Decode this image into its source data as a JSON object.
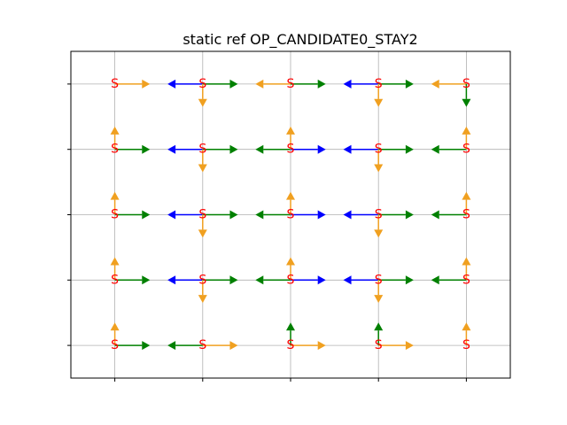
{
  "chart_data": {
    "type": "scatter",
    "title": "static ref OP_CANDIDATE0_STAY2",
    "xlabel": "",
    "ylabel": "",
    "xlim": [
      -0.5,
      4.5
    ],
    "ylim": [
      -0.5,
      4.5
    ],
    "xticks": [
      0,
      1,
      2,
      3,
      4
    ],
    "yticks": [
      0,
      1,
      2,
      3,
      4
    ],
    "grid": true,
    "tick_labels_visible": false,
    "node_label": "S",
    "node_color": "#ff0000",
    "colors": {
      "orange": "#f0a020",
      "green": "#008000",
      "blue": "#0000ff"
    },
    "nodes": [
      {
        "x": 0,
        "y": 0
      },
      {
        "x": 1,
        "y": 0
      },
      {
        "x": 2,
        "y": 0
      },
      {
        "x": 3,
        "y": 0
      },
      {
        "x": 4,
        "y": 0
      },
      {
        "x": 0,
        "y": 1
      },
      {
        "x": 1,
        "y": 1
      },
      {
        "x": 2,
        "y": 1
      },
      {
        "x": 3,
        "y": 1
      },
      {
        "x": 4,
        "y": 1
      },
      {
        "x": 0,
        "y": 2
      },
      {
        "x": 1,
        "y": 2
      },
      {
        "x": 2,
        "y": 2
      },
      {
        "x": 3,
        "y": 2
      },
      {
        "x": 4,
        "y": 2
      },
      {
        "x": 0,
        "y": 3
      },
      {
        "x": 1,
        "y": 3
      },
      {
        "x": 2,
        "y": 3
      },
      {
        "x": 3,
        "y": 3
      },
      {
        "x": 4,
        "y": 3
      },
      {
        "x": 0,
        "y": 4
      },
      {
        "x": 1,
        "y": 4
      },
      {
        "x": 2,
        "y": 4
      },
      {
        "x": 3,
        "y": 4
      },
      {
        "x": 4,
        "y": 4
      }
    ],
    "arrows": [
      {
        "x": 0,
        "y": 4,
        "dx": 0.4,
        "dy": 0,
        "color": "orange"
      },
      {
        "x": 1,
        "y": 4,
        "dx": -0.4,
        "dy": 0,
        "color": "blue"
      },
      {
        "x": 1,
        "y": 4,
        "dx": 0.4,
        "dy": 0,
        "color": "green"
      },
      {
        "x": 1,
        "y": 4,
        "dx": 0,
        "dy": -0.35,
        "color": "orange"
      },
      {
        "x": 2,
        "y": 4,
        "dx": -0.4,
        "dy": 0,
        "color": "orange"
      },
      {
        "x": 2,
        "y": 4,
        "dx": 0.4,
        "dy": 0,
        "color": "green"
      },
      {
        "x": 3,
        "y": 4,
        "dx": -0.4,
        "dy": 0,
        "color": "blue"
      },
      {
        "x": 3,
        "y": 4,
        "dx": 0.4,
        "dy": 0,
        "color": "green"
      },
      {
        "x": 3,
        "y": 4,
        "dx": 0,
        "dy": -0.35,
        "color": "orange"
      },
      {
        "x": 4,
        "y": 4,
        "dx": -0.4,
        "dy": 0,
        "color": "orange"
      },
      {
        "x": 4,
        "y": 4,
        "dx": 0,
        "dy": -0.35,
        "color": "green"
      },
      {
        "x": 0,
        "y": 3,
        "dx": 0.4,
        "dy": 0,
        "color": "green"
      },
      {
        "x": 0,
        "y": 3,
        "dx": 0,
        "dy": 0.35,
        "color": "orange"
      },
      {
        "x": 1,
        "y": 3,
        "dx": -0.4,
        "dy": 0,
        "color": "blue"
      },
      {
        "x": 1,
        "y": 3,
        "dx": 0.4,
        "dy": 0,
        "color": "green"
      },
      {
        "x": 1,
        "y": 3,
        "dx": 0,
        "dy": -0.35,
        "color": "orange"
      },
      {
        "x": 2,
        "y": 3,
        "dx": -0.4,
        "dy": 0,
        "color": "green"
      },
      {
        "x": 2,
        "y": 3,
        "dx": 0.4,
        "dy": 0,
        "color": "blue"
      },
      {
        "x": 2,
        "y": 3,
        "dx": 0,
        "dy": 0.35,
        "color": "orange"
      },
      {
        "x": 3,
        "y": 3,
        "dx": -0.4,
        "dy": 0,
        "color": "blue"
      },
      {
        "x": 3,
        "y": 3,
        "dx": 0.4,
        "dy": 0,
        "color": "green"
      },
      {
        "x": 3,
        "y": 3,
        "dx": 0,
        "dy": -0.35,
        "color": "orange"
      },
      {
        "x": 4,
        "y": 3,
        "dx": -0.4,
        "dy": 0,
        "color": "green"
      },
      {
        "x": 4,
        "y": 3,
        "dx": 0,
        "dy": 0.35,
        "color": "orange"
      },
      {
        "x": 0,
        "y": 2,
        "dx": 0.4,
        "dy": 0,
        "color": "green"
      },
      {
        "x": 0,
        "y": 2,
        "dx": 0,
        "dy": 0.35,
        "color": "orange"
      },
      {
        "x": 1,
        "y": 2,
        "dx": -0.4,
        "dy": 0,
        "color": "blue"
      },
      {
        "x": 1,
        "y": 2,
        "dx": 0.4,
        "dy": 0,
        "color": "green"
      },
      {
        "x": 1,
        "y": 2,
        "dx": 0,
        "dy": -0.35,
        "color": "orange"
      },
      {
        "x": 2,
        "y": 2,
        "dx": -0.4,
        "dy": 0,
        "color": "green"
      },
      {
        "x": 2,
        "y": 2,
        "dx": 0.4,
        "dy": 0,
        "color": "blue"
      },
      {
        "x": 2,
        "y": 2,
        "dx": 0,
        "dy": 0.35,
        "color": "orange"
      },
      {
        "x": 3,
        "y": 2,
        "dx": -0.4,
        "dy": 0,
        "color": "blue"
      },
      {
        "x": 3,
        "y": 2,
        "dx": 0.4,
        "dy": 0,
        "color": "green"
      },
      {
        "x": 3,
        "y": 2,
        "dx": 0,
        "dy": -0.35,
        "color": "orange"
      },
      {
        "x": 4,
        "y": 2,
        "dx": -0.4,
        "dy": 0,
        "color": "green"
      },
      {
        "x": 4,
        "y": 2,
        "dx": 0,
        "dy": 0.35,
        "color": "orange"
      },
      {
        "x": 0,
        "y": 1,
        "dx": 0.4,
        "dy": 0,
        "color": "green"
      },
      {
        "x": 0,
        "y": 1,
        "dx": 0,
        "dy": 0.35,
        "color": "orange"
      },
      {
        "x": 1,
        "y": 1,
        "dx": -0.4,
        "dy": 0,
        "color": "blue"
      },
      {
        "x": 1,
        "y": 1,
        "dx": 0.4,
        "dy": 0,
        "color": "green"
      },
      {
        "x": 1,
        "y": 1,
        "dx": 0,
        "dy": -0.35,
        "color": "orange"
      },
      {
        "x": 2,
        "y": 1,
        "dx": -0.4,
        "dy": 0,
        "color": "green"
      },
      {
        "x": 2,
        "y": 1,
        "dx": 0.4,
        "dy": 0,
        "color": "blue"
      },
      {
        "x": 2,
        "y": 1,
        "dx": 0,
        "dy": 0.35,
        "color": "orange"
      },
      {
        "x": 3,
        "y": 1,
        "dx": -0.4,
        "dy": 0,
        "color": "blue"
      },
      {
        "x": 3,
        "y": 1,
        "dx": 0.4,
        "dy": 0,
        "color": "green"
      },
      {
        "x": 3,
        "y": 1,
        "dx": 0,
        "dy": -0.35,
        "color": "orange"
      },
      {
        "x": 4,
        "y": 1,
        "dx": -0.4,
        "dy": 0,
        "color": "green"
      },
      {
        "x": 4,
        "y": 1,
        "dx": 0,
        "dy": 0.35,
        "color": "orange"
      },
      {
        "x": 0,
        "y": 0,
        "dx": 0.4,
        "dy": 0,
        "color": "green"
      },
      {
        "x": 0,
        "y": 0,
        "dx": 0,
        "dy": 0.35,
        "color": "orange"
      },
      {
        "x": 1,
        "y": 0,
        "dx": -0.4,
        "dy": 0,
        "color": "green"
      },
      {
        "x": 1,
        "y": 0,
        "dx": 0.4,
        "dy": 0,
        "color": "orange"
      },
      {
        "x": 2,
        "y": 0,
        "dx": 0.4,
        "dy": 0,
        "color": "orange"
      },
      {
        "x": 2,
        "y": 0,
        "dx": 0,
        "dy": 0.35,
        "color": "green"
      },
      {
        "x": 3,
        "y": 0,
        "dx": 0.4,
        "dy": 0,
        "color": "orange"
      },
      {
        "x": 3,
        "y": 0,
        "dx": 0,
        "dy": 0.35,
        "color": "green"
      },
      {
        "x": 4,
        "y": 0,
        "dx": 0,
        "dy": 0.35,
        "color": "orange"
      }
    ]
  }
}
